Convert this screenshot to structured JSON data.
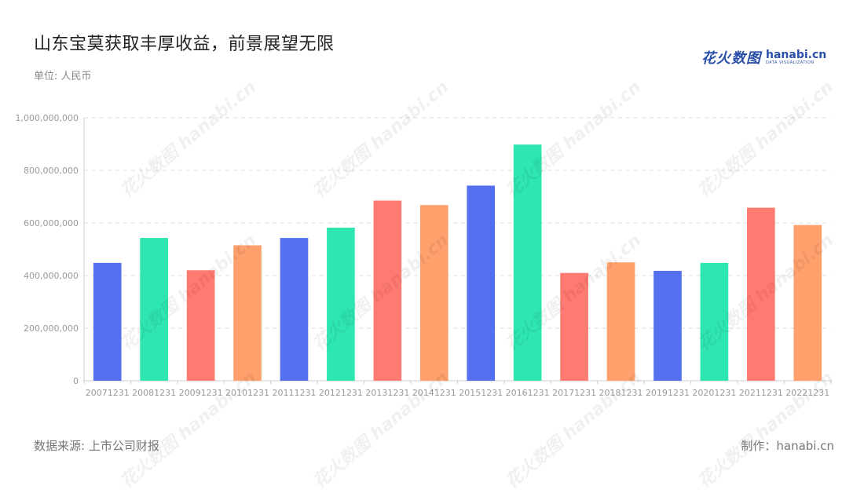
{
  "header": {
    "title": "山东宝莫获取丰厚收益，前景展望无限",
    "unit": "单位: 人民币"
  },
  "logo": {
    "cn": "花火数图",
    "en": "hanabi.cn",
    "sub": "DATA VISUALIZATION"
  },
  "footer": {
    "source": "数据来源: 上市公司财报",
    "credit": "制作：hanabi.cn"
  },
  "colors": {
    "palette": [
      "#5470ee",
      "#2ee6b0",
      "#ff7a70",
      "#ffa06d"
    ],
    "axis": "#cccccc",
    "grid": "#dddddd",
    "tick_text": "#999999"
  },
  "chart_data": {
    "type": "bar",
    "categories": [
      "20071231",
      "20081231",
      "20091231",
      "20101231",
      "20111231",
      "20121231",
      "20131231",
      "20141231",
      "20151231",
      "20161231",
      "20171231",
      "20181231",
      "20191231",
      "20201231",
      "20211231",
      "20221231"
    ],
    "values": [
      448000000,
      543000000,
      420000000,
      515000000,
      543000000,
      582000000,
      685000000,
      668000000,
      742000000,
      898000000,
      410000000,
      450000000,
      418000000,
      448000000,
      658000000,
      592000000
    ],
    "ylim": [
      0,
      1000000000
    ],
    "yticks": [
      0,
      200000000,
      400000000,
      600000000,
      800000000,
      1000000000
    ],
    "ytick_labels": [
      "0",
      "200,000,000",
      "400,000,000",
      "600,000,000",
      "800,000,000",
      "1,000,000,000"
    ],
    "grid": true,
    "legend": "none"
  }
}
